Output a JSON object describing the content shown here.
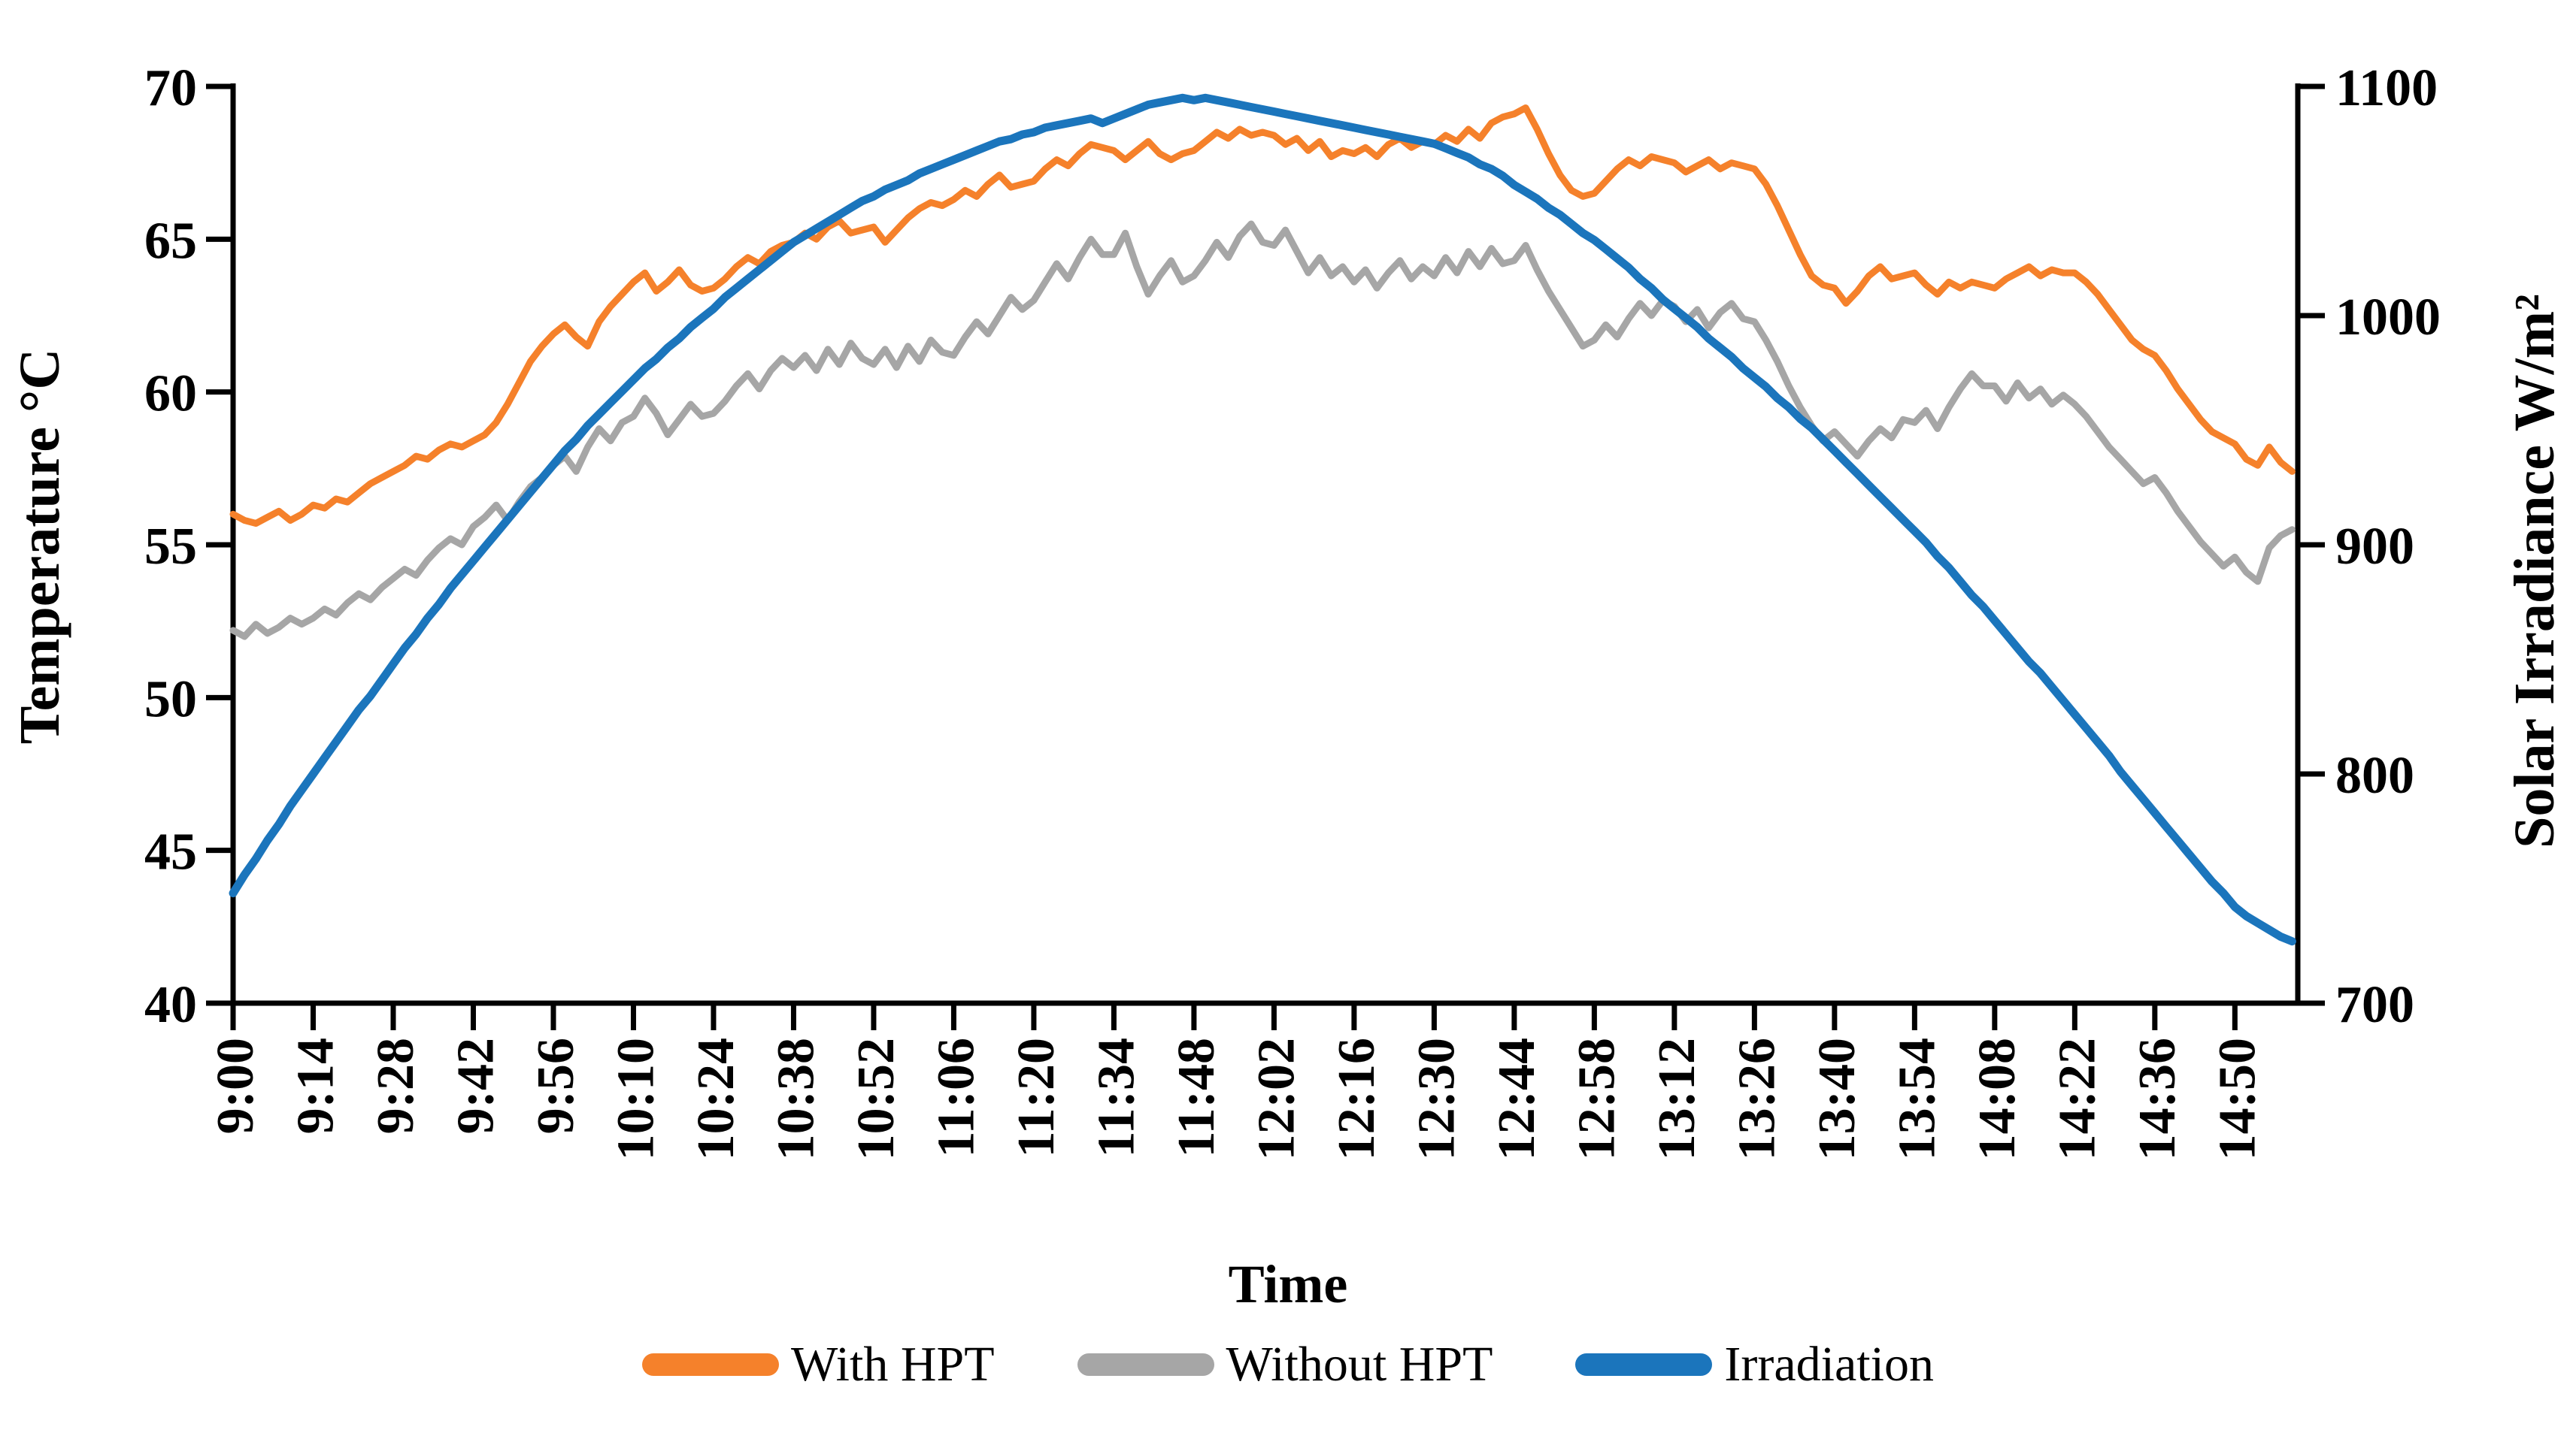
{
  "chart_data": {
    "type": "line",
    "title": "",
    "x_axis": {
      "label": "Time",
      "start_time": "9:00",
      "end_time": "15:00",
      "point_interval_minutes": 2,
      "tick_interval_minutes": 14,
      "tick_labels": [
        "9:00",
        "9:14",
        "9:28",
        "9:42",
        "9:56",
        "10:10",
        "10:24",
        "10:38",
        "10:52",
        "11:06",
        "11:20",
        "11:34",
        "11:48",
        "12:02",
        "12:16",
        "12:30",
        "12:44",
        "12:58",
        "13:12",
        "13:26",
        "13:40",
        "13:54",
        "14:08",
        "14:22",
        "14:36",
        "14:50"
      ]
    },
    "y_left": {
      "label": "Temperature °C",
      "min": 40,
      "max": 70,
      "tick_step": 5,
      "ticks": [
        "40",
        "45",
        "50",
        "55",
        "60",
        "65",
        "70"
      ]
    },
    "y_right": {
      "label": "Solar Irradiance W/m²",
      "min": 700,
      "max": 1100,
      "tick_step": 100,
      "ticks": [
        "700",
        "800",
        "900",
        "1000",
        "1100"
      ]
    },
    "grid": "off",
    "legend_position": "bottom",
    "axis_color": "#000000",
    "series": [
      {
        "name": "With HPT",
        "axis": "left",
        "color": "#F5812B",
        "stroke_width": 9,
        "values": [
          56.0,
          55.8,
          55.7,
          55.9,
          56.1,
          55.8,
          56.0,
          56.3,
          56.2,
          56.5,
          56.4,
          56.7,
          57.0,
          57.2,
          57.4,
          57.6,
          57.9,
          57.8,
          58.1,
          58.3,
          58.2,
          58.4,
          58.6,
          59.0,
          59.6,
          60.3,
          61.0,
          61.5,
          61.9,
          62.2,
          61.8,
          61.5,
          62.3,
          62.8,
          63.2,
          63.6,
          63.9,
          63.3,
          63.6,
          64.0,
          63.5,
          63.3,
          63.4,
          63.7,
          64.1,
          64.4,
          64.2,
          64.6,
          64.8,
          64.9,
          65.2,
          65.0,
          65.4,
          65.6,
          65.2,
          65.3,
          65.4,
          64.9,
          65.3,
          65.7,
          66.0,
          66.2,
          66.1,
          66.3,
          66.6,
          66.4,
          66.8,
          67.1,
          66.7,
          66.8,
          66.9,
          67.3,
          67.6,
          67.4,
          67.8,
          68.1,
          68.0,
          67.9,
          67.6,
          67.9,
          68.2,
          67.8,
          67.6,
          67.8,
          67.9,
          68.2,
          68.5,
          68.3,
          68.6,
          68.4,
          68.5,
          68.4,
          68.1,
          68.3,
          67.9,
          68.2,
          67.7,
          67.9,
          67.8,
          68.0,
          67.7,
          68.1,
          68.3,
          68.0,
          68.2,
          68.1,
          68.4,
          68.2,
          68.6,
          68.3,
          68.8,
          69.0,
          69.1,
          69.3,
          68.6,
          67.8,
          67.1,
          66.6,
          66.4,
          66.5,
          66.9,
          67.3,
          67.6,
          67.4,
          67.7,
          67.6,
          67.5,
          67.2,
          67.4,
          67.6,
          67.3,
          67.5,
          67.4,
          67.3,
          66.8,
          66.1,
          65.3,
          64.5,
          63.8,
          63.5,
          63.4,
          62.9,
          63.3,
          63.8,
          64.1,
          63.7,
          63.8,
          63.9,
          63.5,
          63.2,
          63.6,
          63.4,
          63.6,
          63.5,
          63.4,
          63.7,
          63.9,
          64.1,
          63.8,
          64.0,
          63.9,
          63.9,
          63.6,
          63.2,
          62.7,
          62.2,
          61.7,
          61.4,
          61.2,
          60.7,
          60.1,
          59.6,
          59.1,
          58.7,
          58.5,
          58.3,
          57.8,
          57.6,
          58.2,
          57.7,
          57.4
        ]
      },
      {
        "name": "Without HPT",
        "axis": "left",
        "color": "#A6A6A6",
        "stroke_width": 9,
        "values": [
          52.2,
          52.0,
          52.4,
          52.1,
          52.3,
          52.6,
          52.4,
          52.6,
          52.9,
          52.7,
          53.1,
          53.4,
          53.2,
          53.6,
          53.9,
          54.2,
          54.0,
          54.5,
          54.9,
          55.2,
          55.0,
          55.6,
          55.9,
          56.3,
          55.8,
          56.4,
          56.9,
          57.2,
          57.6,
          57.9,
          57.4,
          58.2,
          58.8,
          58.4,
          59.0,
          59.2,
          59.8,
          59.3,
          58.6,
          59.1,
          59.6,
          59.2,
          59.3,
          59.7,
          60.2,
          60.6,
          60.1,
          60.7,
          61.1,
          60.8,
          61.2,
          60.7,
          61.4,
          60.9,
          61.6,
          61.1,
          60.9,
          61.4,
          60.8,
          61.5,
          61.0,
          61.7,
          61.3,
          61.2,
          61.8,
          62.3,
          61.9,
          62.5,
          63.1,
          62.7,
          63.0,
          63.6,
          64.2,
          63.7,
          64.4,
          65.0,
          64.5,
          64.5,
          65.2,
          64.1,
          63.2,
          63.8,
          64.3,
          63.6,
          63.8,
          64.3,
          64.9,
          64.4,
          65.1,
          65.5,
          64.9,
          64.8,
          65.3,
          64.6,
          63.9,
          64.4,
          63.8,
          64.1,
          63.6,
          64.0,
          63.4,
          63.9,
          64.3,
          63.7,
          64.1,
          63.8,
          64.4,
          63.9,
          64.6,
          64.1,
          64.7,
          64.2,
          64.3,
          64.8,
          64.0,
          63.3,
          62.7,
          62.1,
          61.5,
          61.7,
          62.2,
          61.8,
          62.4,
          62.9,
          62.5,
          63.0,
          62.8,
          62.3,
          62.7,
          62.1,
          62.6,
          62.9,
          62.4,
          62.3,
          61.7,
          61.0,
          60.2,
          59.5,
          58.9,
          58.4,
          58.7,
          58.3,
          57.9,
          58.4,
          58.8,
          58.5,
          59.1,
          59.0,
          59.4,
          58.8,
          59.5,
          60.1,
          60.6,
          60.2,
          60.2,
          59.7,
          60.3,
          59.8,
          60.1,
          59.6,
          59.9,
          59.6,
          59.2,
          58.7,
          58.2,
          57.8,
          57.4,
          57.0,
          57.2,
          56.7,
          56.1,
          55.6,
          55.1,
          54.7,
          54.3,
          54.6,
          54.1,
          53.8,
          54.9,
          55.3,
          55.5
        ]
      },
      {
        "name": "Irradiation",
        "axis": "right",
        "color": "#1B75BC",
        "stroke_width": 11,
        "values": [
          748,
          756,
          763,
          771,
          778,
          786,
          793,
          800,
          807,
          814,
          821,
          828,
          834,
          841,
          848,
          855,
          861,
          868,
          874,
          881,
          887,
          893,
          899,
          905,
          911,
          917,
          923,
          929,
          935,
          941,
          946,
          952,
          957,
          962,
          967,
          972,
          977,
          981,
          986,
          990,
          995,
          999,
          1003,
          1008,
          1012,
          1016,
          1020,
          1024,
          1028,
          1032,
          1035,
          1038,
          1041,
          1044,
          1047,
          1050,
          1052,
          1055,
          1057,
          1059,
          1062,
          1064,
          1066,
          1068,
          1070,
          1072,
          1074,
          1076,
          1077,
          1079,
          1080,
          1082,
          1083,
          1084,
          1085,
          1086,
          1084,
          1086,
          1088,
          1090,
          1092,
          1093,
          1094,
          1095,
          1094,
          1095,
          1094,
          1093,
          1092,
          1091,
          1090,
          1089,
          1088,
          1087,
          1086,
          1085,
          1084,
          1083,
          1082,
          1081,
          1080,
          1079,
          1078,
          1077,
          1076,
          1075,
          1073,
          1071,
          1069,
          1066,
          1064,
          1061,
          1057,
          1054,
          1051,
          1047,
          1044,
          1040,
          1036,
          1033,
          1029,
          1025,
          1021,
          1016,
          1012,
          1007,
          1003,
          999,
          995,
          990,
          986,
          982,
          977,
          973,
          969,
          964,
          960,
          955,
          951,
          946,
          941,
          936,
          931,
          926,
          921,
          916,
          911,
          906,
          901,
          895,
          890,
          884,
          878,
          873,
          867,
          861,
          855,
          849,
          844,
          838,
          832,
          826,
          820,
          814,
          808,
          801,
          795,
          789,
          783,
          777,
          771,
          765,
          759,
          753,
          748,
          742,
          738,
          735,
          732,
          729,
          727
        ]
      }
    ]
  }
}
